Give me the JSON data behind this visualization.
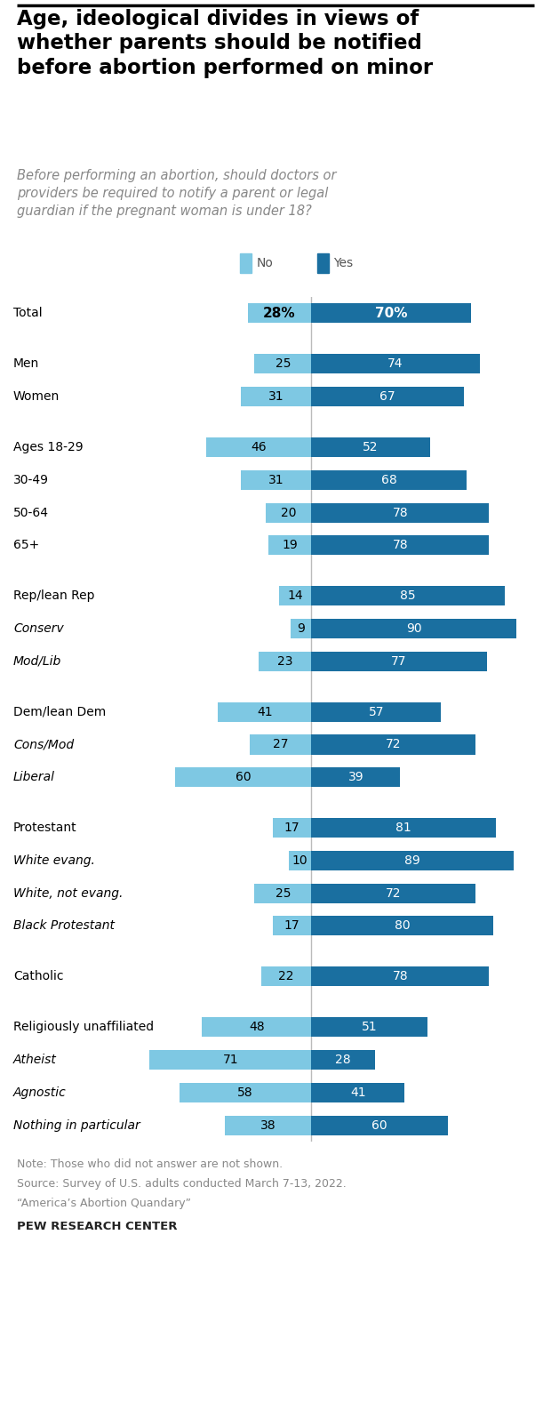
{
  "title": "Age, ideological divides in views of\nwhether parents should be notified\nbefore abortion performed on minor",
  "subtitle": "Before performing an abortion, should doctors or\nproviders be required to notify a parent or legal\nguardian if the pregnant woman is under 18?",
  "categories": [
    "Total",
    "Men",
    "Women",
    "Ages 18-29",
    "30-49",
    "50-64",
    "65+",
    "Rep/lean Rep",
    "Conserv",
    "Mod/Lib",
    "Dem/lean Dem",
    "Cons/Mod",
    "Liberal",
    "Protestant",
    "White evang.",
    "White, not evang.",
    "Black Protestant",
    "Catholic",
    "Religiously unaffiliated",
    "Atheist",
    "Agnostic",
    "Nothing in particular"
  ],
  "no_values": [
    28,
    25,
    31,
    46,
    31,
    20,
    19,
    14,
    9,
    23,
    41,
    27,
    60,
    17,
    10,
    25,
    17,
    22,
    48,
    71,
    58,
    38
  ],
  "yes_values": [
    70,
    74,
    67,
    52,
    68,
    78,
    78,
    85,
    90,
    77,
    57,
    72,
    39,
    81,
    89,
    72,
    80,
    78,
    51,
    28,
    41,
    60
  ],
  "italic_rows": [
    false,
    false,
    false,
    false,
    false,
    false,
    false,
    false,
    true,
    true,
    false,
    true,
    true,
    false,
    true,
    true,
    true,
    false,
    false,
    true,
    true,
    true
  ],
  "group_gaps_before": [
    0,
    1,
    0,
    1,
    0,
    0,
    0,
    1,
    0,
    0,
    1,
    0,
    0,
    1,
    0,
    0,
    0,
    1,
    1,
    0,
    0,
    0
  ],
  "color_no": "#7ec8e3",
  "color_yes": "#1a6fa0",
  "color_title": "#000000",
  "color_subtitle": "#888888",
  "color_note": "#888888",
  "bar_height": 0.6,
  "note_lines": [
    "Note: Those who did not answer are not shown.",
    "Source: Survey of U.S. adults conducted March 7-13, 2022.",
    "“America’s Abortion Quandary”"
  ],
  "source_bold": "PEW RESEARCH CENTER"
}
